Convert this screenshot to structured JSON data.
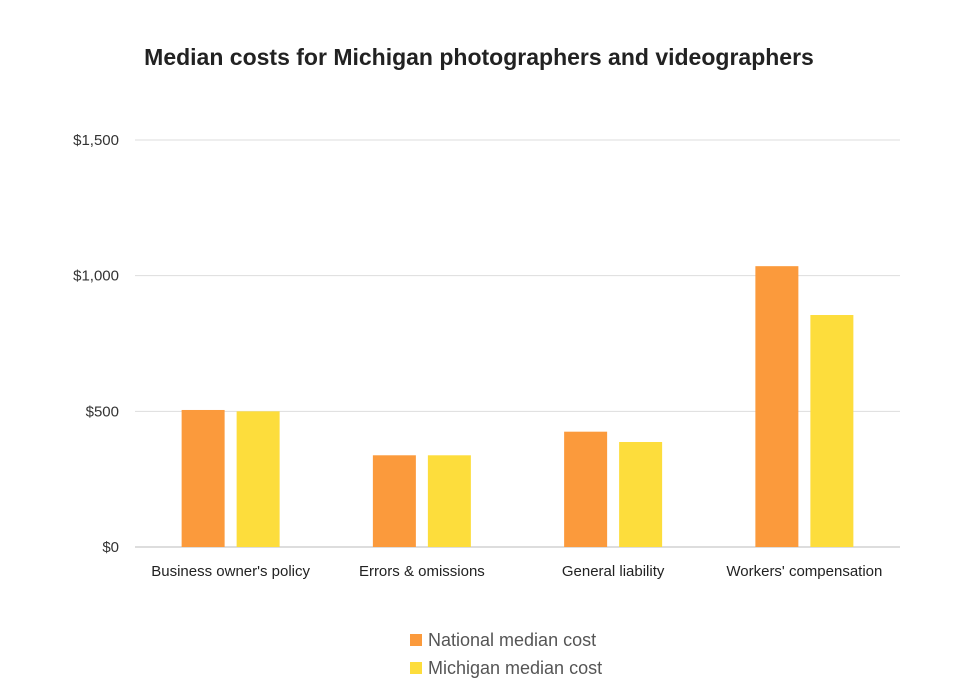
{
  "chart_data": {
    "type": "bar",
    "title": "Median costs for Michigan photographers and videographers",
    "xlabel": "",
    "ylabel": "",
    "categories": [
      "Business owner's policy",
      "Errors & omissions",
      "General liability",
      "Workers' compensation"
    ],
    "series": [
      {
        "name": "National median cost",
        "color": "#fb9a3c",
        "values": [
          505,
          338,
          425,
          1035
        ]
      },
      {
        "name": "Michigan median cost",
        "color": "#fddd3c",
        "values": [
          500,
          338,
          387,
          855
        ]
      }
    ],
    "ylim": [
      0,
      1500
    ],
    "yticks": [
      0,
      500,
      1000,
      1500
    ],
    "ytick_labels": [
      "$0",
      "$500",
      "$1,000",
      "$1,500"
    ],
    "grid": true,
    "legend_position": "bottom"
  }
}
